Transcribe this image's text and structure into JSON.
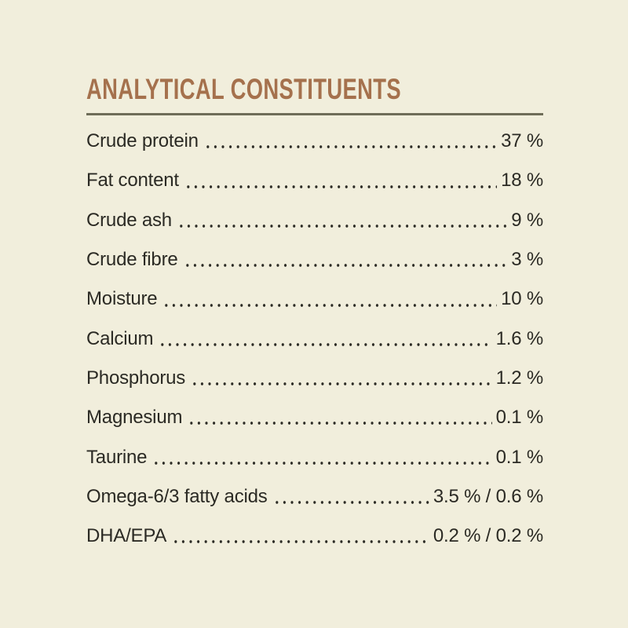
{
  "theme": {
    "background": "#f1eedc",
    "text_color": "#2b2a24",
    "title_color": "#a5714d",
    "rule_color": "#6e6d58"
  },
  "section": {
    "title": "ANALYTICAL CONSTITUENTS",
    "rows": [
      {
        "label": "Crude protein",
        "value": "37 %"
      },
      {
        "label": "Fat content",
        "value": "18 %"
      },
      {
        "label": "Crude ash",
        "value": "9 %"
      },
      {
        "label": "Crude fibre",
        "value": "3 %"
      },
      {
        "label": "Moisture",
        "value": "10 %"
      },
      {
        "label": "Calcium",
        "value": "1.6 %"
      },
      {
        "label": "Phosphorus",
        "value": "1.2 %"
      },
      {
        "label": "Magnesium",
        "value": "0.1 %"
      },
      {
        "label": "Taurine",
        "value": "0.1 %"
      },
      {
        "label": "Omega-6/3 fatty acids",
        "value": "3.5 % / 0.6 %"
      },
      {
        "label": "DHA/EPA",
        "value": "0.2 % / 0.2 %"
      }
    ]
  }
}
